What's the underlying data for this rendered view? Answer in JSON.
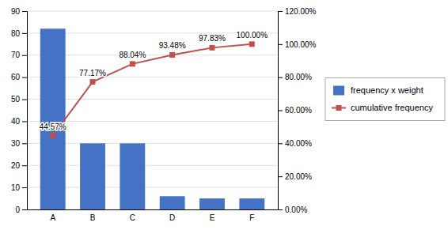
{
  "chart_data": {
    "type": "bar",
    "categories": [
      "A",
      "B",
      "C",
      "D",
      "E",
      "F"
    ],
    "series": [
      {
        "name": "frequency x weight",
        "type": "bar",
        "color": "#4472C4",
        "values": [
          82,
          30,
          30,
          6,
          5,
          5
        ]
      },
      {
        "name": "cumulative frequency",
        "type": "line",
        "axis": "y2",
        "color": "#C0504D",
        "marker": "square",
        "data_labels": true,
        "values": [
          44.57,
          77.17,
          88.04,
          93.48,
          97.83,
          100.0
        ],
        "value_labels": [
          "44.57%",
          "77.17%",
          "88.04%",
          "93.48%",
          "97.83%",
          "100.00%"
        ]
      }
    ],
    "ylim": [
      0,
      90
    ],
    "yticks": [
      0,
      10,
      20,
      30,
      40,
      50,
      60,
      70,
      80,
      90
    ],
    "y2lim": [
      0,
      120
    ],
    "y2ticks": [
      {
        "value": 0,
        "label": "0.00%"
      },
      {
        "value": 20,
        "label": "20.00%"
      },
      {
        "value": 40,
        "label": "40.00%"
      },
      {
        "value": 60,
        "label": "60.00%"
      },
      {
        "value": 80,
        "label": "80.00%"
      },
      {
        "value": 100,
        "label": "100.00%"
      },
      {
        "value": 120,
        "label": "120.00%"
      }
    ],
    "grid": true,
    "legend": "right"
  }
}
